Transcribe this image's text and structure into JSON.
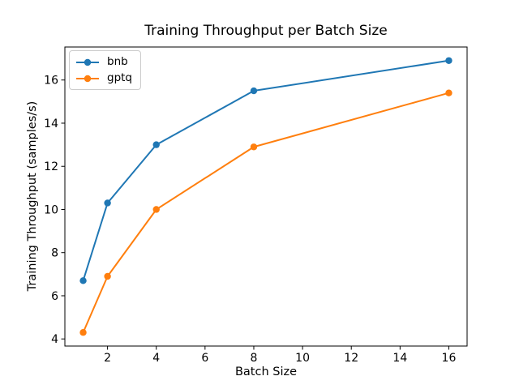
{
  "figure": {
    "background": "#ffffff",
    "axis_color": "#000000",
    "text_color": "#000000"
  },
  "chart_data": {
    "type": "line",
    "title": "Training Throughput per Batch Size",
    "xlabel": "Batch Size",
    "ylabel": "Training Throughput (samples/s)",
    "x": [
      1,
      2,
      4,
      8,
      16
    ],
    "series": [
      {
        "name": "bnb",
        "color": "#1f77b4",
        "values": [
          6.7,
          10.3,
          13.0,
          15.5,
          16.9
        ]
      },
      {
        "name": "gptq",
        "color": "#ff7f0e",
        "values": [
          4.3,
          6.9,
          10.0,
          12.9,
          15.4
        ]
      }
    ],
    "xticks": [
      2,
      4,
      6,
      8,
      10,
      12,
      14,
      16
    ],
    "yticks": [
      4,
      6,
      8,
      10,
      12,
      14,
      16
    ],
    "xlim": [
      0.25,
      16.75
    ],
    "ylim": [
      3.67,
      17.53
    ],
    "grid": false,
    "legend_position": "upper left",
    "marker": "circle",
    "line_width": 2
  }
}
